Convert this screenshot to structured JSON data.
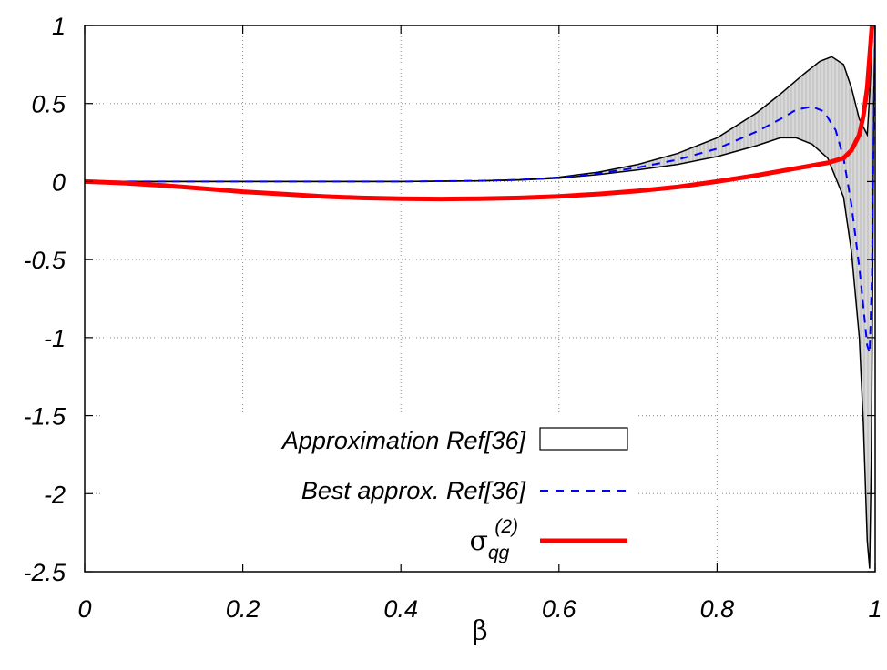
{
  "chart_data": {
    "type": "line",
    "xlabel": "β",
    "ylabel": "",
    "xlim": [
      0,
      1
    ],
    "ylim": [
      -2.5,
      1
    ],
    "grid": true,
    "legend_position": "bottom-left",
    "xticks": [
      "0",
      "0.2",
      "0.4",
      "0.6",
      "0.8",
      "1"
    ],
    "yticks": [
      "1",
      "0.5",
      "0",
      "-0.5",
      "-1",
      "-1.5",
      "-2",
      "-2.5"
    ],
    "series": [
      {
        "name": "Approximation Ref[36]",
        "style": "band",
        "color": "#d3d3d3",
        "upper": [
          [
            0,
            0
          ],
          [
            0.1,
            0
          ],
          [
            0.2,
            0
          ],
          [
            0.3,
            0
          ],
          [
            0.4,
            0
          ],
          [
            0.5,
            0.005
          ],
          [
            0.55,
            0.012
          ],
          [
            0.6,
            0.028
          ],
          [
            0.65,
            0.06
          ],
          [
            0.7,
            0.11
          ],
          [
            0.75,
            0.18
          ],
          [
            0.8,
            0.28
          ],
          [
            0.85,
            0.44
          ],
          [
            0.88,
            0.56
          ],
          [
            0.91,
            0.69
          ],
          [
            0.93,
            0.77
          ],
          [
            0.945,
            0.8
          ],
          [
            0.96,
            0.75
          ],
          [
            0.97,
            0.6
          ],
          [
            0.98,
            0.4
          ],
          [
            0.99,
            0.3
          ],
          [
            0.993,
            0.55
          ],
          [
            0.996,
            0.9
          ],
          [
            0.998,
            1.0
          ]
        ],
        "lower": [
          [
            0,
            0
          ],
          [
            0.1,
            0
          ],
          [
            0.2,
            0
          ],
          [
            0.3,
            0
          ],
          [
            0.4,
            0
          ],
          [
            0.5,
            0.004
          ],
          [
            0.55,
            0.01
          ],
          [
            0.6,
            0.022
          ],
          [
            0.65,
            0.045
          ],
          [
            0.7,
            0.075
          ],
          [
            0.75,
            0.11
          ],
          [
            0.8,
            0.16
          ],
          [
            0.85,
            0.23
          ],
          [
            0.88,
            0.28
          ],
          [
            0.9,
            0.28
          ],
          [
            0.92,
            0.24
          ],
          [
            0.94,
            0.15
          ],
          [
            0.96,
            -0.1
          ],
          [
            0.97,
            -0.45
          ],
          [
            0.98,
            -1.0
          ],
          [
            0.985,
            -1.55
          ],
          [
            0.99,
            -2.3
          ],
          [
            0.993,
            -2.48
          ],
          [
            0.995,
            -1.8
          ],
          [
            0.997,
            -0.5
          ],
          [
            0.998,
            0.5
          ],
          [
            1.0,
            1.0
          ]
        ]
      },
      {
        "name": "Best approx. Ref[36]",
        "style": "dashed",
        "color": "#0000ff",
        "points": [
          [
            0,
            0
          ],
          [
            0.1,
            0
          ],
          [
            0.2,
            0
          ],
          [
            0.3,
            0
          ],
          [
            0.4,
            0
          ],
          [
            0.5,
            0.005
          ],
          [
            0.55,
            0.011
          ],
          [
            0.6,
            0.025
          ],
          [
            0.65,
            0.052
          ],
          [
            0.7,
            0.09
          ],
          [
            0.75,
            0.14
          ],
          [
            0.8,
            0.21
          ],
          [
            0.85,
            0.32
          ],
          [
            0.88,
            0.4
          ],
          [
            0.9,
            0.46
          ],
          [
            0.92,
            0.48
          ],
          [
            0.935,
            0.45
          ],
          [
            0.95,
            0.33
          ],
          [
            0.96,
            0.15
          ],
          [
            0.97,
            -0.15
          ],
          [
            0.98,
            -0.55
          ],
          [
            0.99,
            -1.05
          ],
          [
            0.993,
            -1.1
          ],
          [
            0.996,
            -0.6
          ],
          [
            0.998,
            0.3
          ],
          [
            1.0,
            1.0
          ]
        ]
      },
      {
        "name": "σqg(2)",
        "style": "solid",
        "color": "#ff0000",
        "points": [
          [
            0,
            0
          ],
          [
            0.05,
            -0.01
          ],
          [
            0.1,
            -0.025
          ],
          [
            0.15,
            -0.045
          ],
          [
            0.2,
            -0.065
          ],
          [
            0.25,
            -0.08
          ],
          [
            0.3,
            -0.095
          ],
          [
            0.35,
            -0.105
          ],
          [
            0.4,
            -0.11
          ],
          [
            0.45,
            -0.112
          ],
          [
            0.5,
            -0.11
          ],
          [
            0.55,
            -0.105
          ],
          [
            0.6,
            -0.095
          ],
          [
            0.65,
            -0.08
          ],
          [
            0.7,
            -0.06
          ],
          [
            0.75,
            -0.035
          ],
          [
            0.8,
            0
          ],
          [
            0.85,
            0.04
          ],
          [
            0.9,
            0.085
          ],
          [
            0.94,
            0.12
          ],
          [
            0.96,
            0.15
          ],
          [
            0.97,
            0.2
          ],
          [
            0.98,
            0.3
          ],
          [
            0.985,
            0.42
          ],
          [
            0.99,
            0.6
          ],
          [
            0.993,
            0.8
          ],
          [
            0.996,
            1.0
          ]
        ]
      }
    ],
    "legend": {
      "band_label": "Approximation Ref[36]",
      "dashed_label": "Best approx. Ref[36]",
      "red_symbol": "σ",
      "red_sub": "qg",
      "red_sup": "(2)"
    }
  }
}
